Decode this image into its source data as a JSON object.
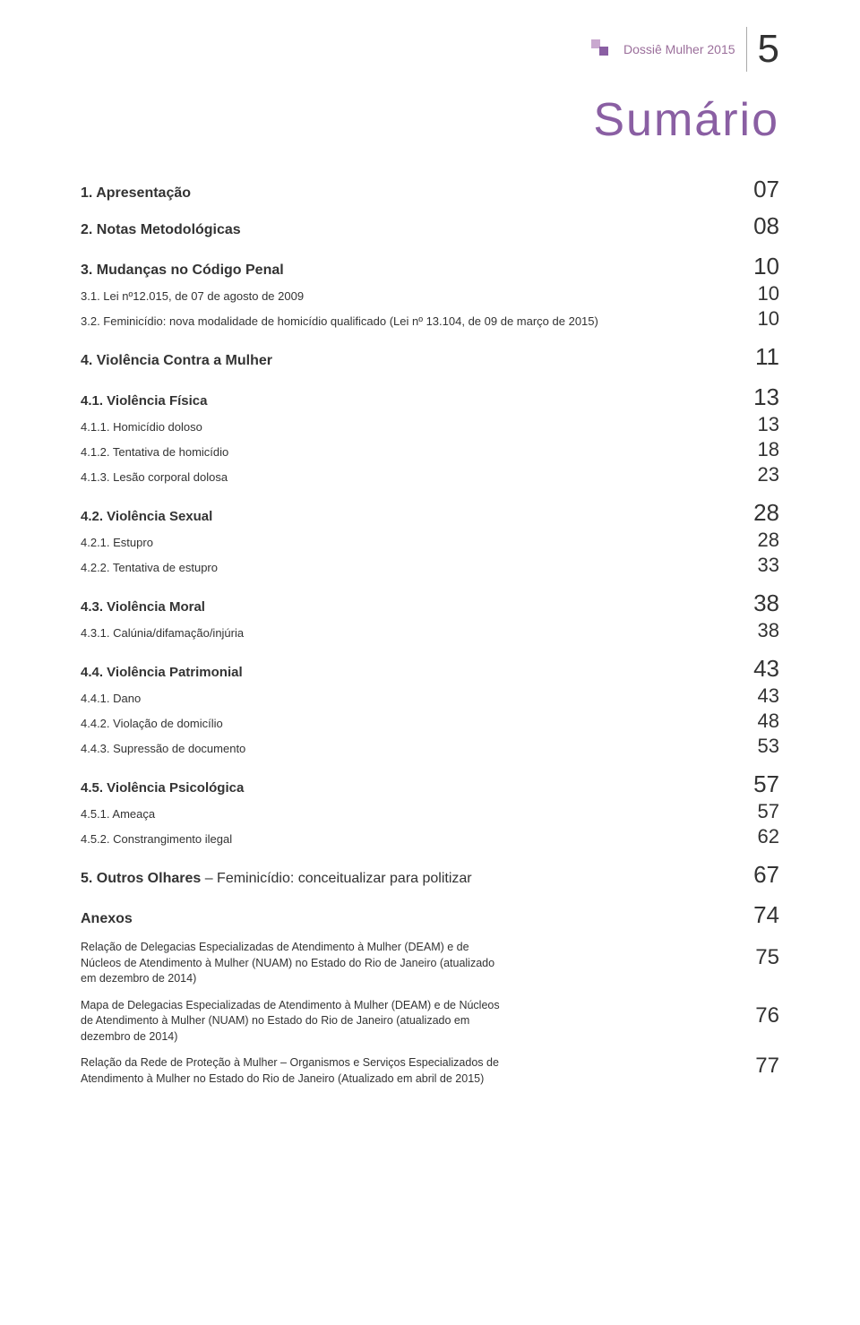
{
  "header": {
    "label": "Dossiê Mulher 2015",
    "page_num": "5",
    "deco_color1": "#c9a8cf",
    "deco_color2": "#8a5fa3"
  },
  "title": "Sumário",
  "title_color": "#8a5fa3",
  "toc": [
    {
      "level": 1,
      "label": "1. Apresentação",
      "page": "07"
    },
    {
      "level": 1,
      "label": "2. Notas Metodológicas",
      "page": "08"
    },
    {
      "level": 1,
      "label": "3. Mudanças no Código Penal",
      "page": "10",
      "gap": true
    },
    {
      "level": 3,
      "label": "3.1. Lei nº12.015, de 07 de agosto de 2009",
      "page": "10"
    },
    {
      "level": 3,
      "label": "3.2. Feminicídio: nova modalidade de homicídio qualificado (Lei nº 13.104, de 09 de março de 2015)",
      "page": "10"
    },
    {
      "level": 1,
      "label": "4. Violência Contra a Mulher",
      "page": "11",
      "gap": true
    },
    {
      "level": 2,
      "label": "4.1. Violência Física",
      "page": "13",
      "gap": true
    },
    {
      "level": 3,
      "label": "4.1.1. Homicídio doloso",
      "page": "13"
    },
    {
      "level": 3,
      "label": "4.1.2. Tentativa de homicídio",
      "page": "18"
    },
    {
      "level": 3,
      "label": "4.1.3. Lesão corporal dolosa",
      "page": "23"
    },
    {
      "level": 2,
      "label": "4.2. Violência Sexual",
      "page": "28",
      "gap": true
    },
    {
      "level": 3,
      "label": "4.2.1. Estupro",
      "page": "28"
    },
    {
      "level": 3,
      "label": "4.2.2. Tentativa de estupro",
      "page": "33"
    },
    {
      "level": 2,
      "label": "4.3. Violência Moral",
      "page": "38",
      "gap": true
    },
    {
      "level": 3,
      "label": "4.3.1. Calúnia/difamação/injúria",
      "page": "38"
    },
    {
      "level": 2,
      "label": "4.4. Violência Patrimonial",
      "page": "43",
      "gap": true
    },
    {
      "level": 3,
      "label": "4.4.1. Dano",
      "page": "43"
    },
    {
      "level": 3,
      "label": "4.4.2. Violação de domicílio",
      "page": "48"
    },
    {
      "level": 3,
      "label": "4.4.3. Supressão de documento",
      "page": "53"
    },
    {
      "level": 2,
      "label": "4.5. Violência Psicológica",
      "page": "57",
      "gap": true
    },
    {
      "level": 3,
      "label": "4.5.1. Ameaça",
      "page": "57"
    },
    {
      "level": 3,
      "label": "4.5.2. Constrangimento ilegal",
      "page": "62"
    },
    {
      "level": 1,
      "label_bold": "5. Outros Olhares",
      "label_rest": " – Feminicídio: conceitualizar para politizar",
      "page": "67",
      "gap": true,
      "mixed": true
    },
    {
      "level": 1,
      "label": "Anexos",
      "page": "74",
      "gap": true
    }
  ],
  "anexos": [
    {
      "text": "Relação de Delegacias Especializadas de Atendimento à Mulher (DEAM) e de Núcleos de Atendimento à Mulher (NUAM) no Estado do Rio de Janeiro (atualizado em dezembro de 2014)",
      "page": "75"
    },
    {
      "text": "Mapa de Delegacias Especializadas de Atendimento à Mulher (DEAM) e de Núcleos de Atendimento à Mulher (NUAM) no Estado do Rio de Janeiro (atualizado em dezembro de 2014)",
      "page": "76"
    },
    {
      "text": "Relação da Rede de Proteção à Mulher – Organismos e Serviços Especializados de Atendimento à Mulher no Estado do Rio de Janeiro (Atualizado em abril de 2015)",
      "page": "77"
    }
  ]
}
